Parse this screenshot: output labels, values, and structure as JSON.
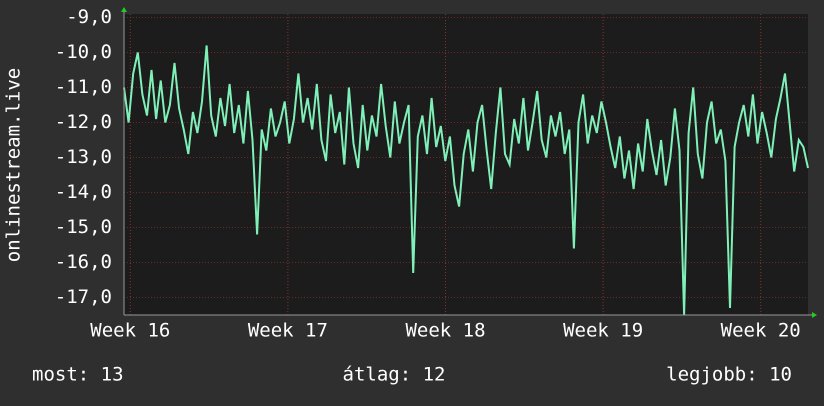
{
  "chart_data": {
    "type": "line",
    "y_label": "onlinestream.live",
    "color": "#7ff0b8",
    "grid": true,
    "ylim": [
      -17.5,
      -8.9
    ],
    "yticks": [
      {
        "value": -9,
        "label": "-9,0"
      },
      {
        "value": -10,
        "label": "-10,0"
      },
      {
        "value": -11,
        "label": "-11,0"
      },
      {
        "value": -12,
        "label": "-12,0"
      },
      {
        "value": -13,
        "label": "-13,0"
      },
      {
        "value": -14,
        "label": "-14,0"
      },
      {
        "value": -15,
        "label": "-15,0"
      },
      {
        "value": -16,
        "label": "-16,0"
      },
      {
        "value": -17,
        "label": "-17,0"
      }
    ],
    "xlim": [
      15.96,
      20.3
    ],
    "xticks": [
      {
        "value": 16,
        "label": "Week 16"
      },
      {
        "value": 17,
        "label": "Week 17"
      },
      {
        "value": 18,
        "label": "Week 18"
      },
      {
        "value": 19,
        "label": "Week 19"
      },
      {
        "value": 20,
        "label": "Week 20"
      }
    ],
    "values": [
      -11.0,
      -12.0,
      -10.6,
      -10.0,
      -11.2,
      -11.8,
      -10.5,
      -11.9,
      -10.8,
      -12.0,
      -11.5,
      -10.3,
      -11.6,
      -12.2,
      -12.9,
      -11.7,
      -12.3,
      -11.4,
      -9.8,
      -11.8,
      -12.4,
      -11.3,
      -12.1,
      -10.9,
      -12.3,
      -11.5,
      -12.6,
      -11.1,
      -12.5,
      -15.2,
      -12.2,
      -12.8,
      -11.6,
      -12.4,
      -12.0,
      -11.4,
      -12.6,
      -11.9,
      -10.6,
      -12.0,
      -11.3,
      -12.2,
      -10.9,
      -12.5,
      -13.1,
      -11.2,
      -12.3,
      -11.7,
      -13.2,
      -11.0,
      -12.6,
      -13.3,
      -11.5,
      -12.8,
      -11.8,
      -12.4,
      -10.9,
      -12.1,
      -13.0,
      -11.4,
      -12.6,
      -12.0,
      -11.5,
      -16.3,
      -12.4,
      -11.8,
      -12.9,
      -11.3,
      -12.7,
      -12.1,
      -13.1,
      -12.4,
      -13.8,
      -14.4,
      -12.9,
      -12.2,
      -13.4,
      -12.0,
      -11.5,
      -12.8,
      -13.9,
      -12.3,
      -11.0,
      -12.9,
      -13.2,
      -11.9,
      -12.6,
      -11.3,
      -12.8,
      -12.0,
      -11.1,
      -12.5,
      -13.0,
      -11.8,
      -12.4,
      -11.7,
      -12.9,
      -12.2,
      -15.6,
      -12.0,
      -11.2,
      -12.6,
      -11.8,
      -12.3,
      -11.4,
      -12.0,
      -12.7,
      -13.3,
      -12.4,
      -13.6,
      -12.8,
      -13.9,
      -12.6,
      -13.4,
      -11.9,
      -12.8,
      -13.5,
      -12.5,
      -13.8,
      -13.0,
      -11.6,
      -12.8,
      -17.5,
      -12.3,
      -11.0,
      -12.9,
      -13.6,
      -12.0,
      -11.4,
      -12.6,
      -12.2,
      -13.1,
      -17.3,
      -12.7,
      -12.0,
      -11.5,
      -12.4,
      -11.2,
      -12.6,
      -11.7,
      -12.3,
      -13.0,
      -11.9,
      -11.3,
      -10.6,
      -12.0,
      -13.4,
      -12.5,
      -12.7,
      -13.3
    ],
    "footer": [
      "most: 13",
      "átlag: 12",
      "legjobb: 10"
    ]
  }
}
